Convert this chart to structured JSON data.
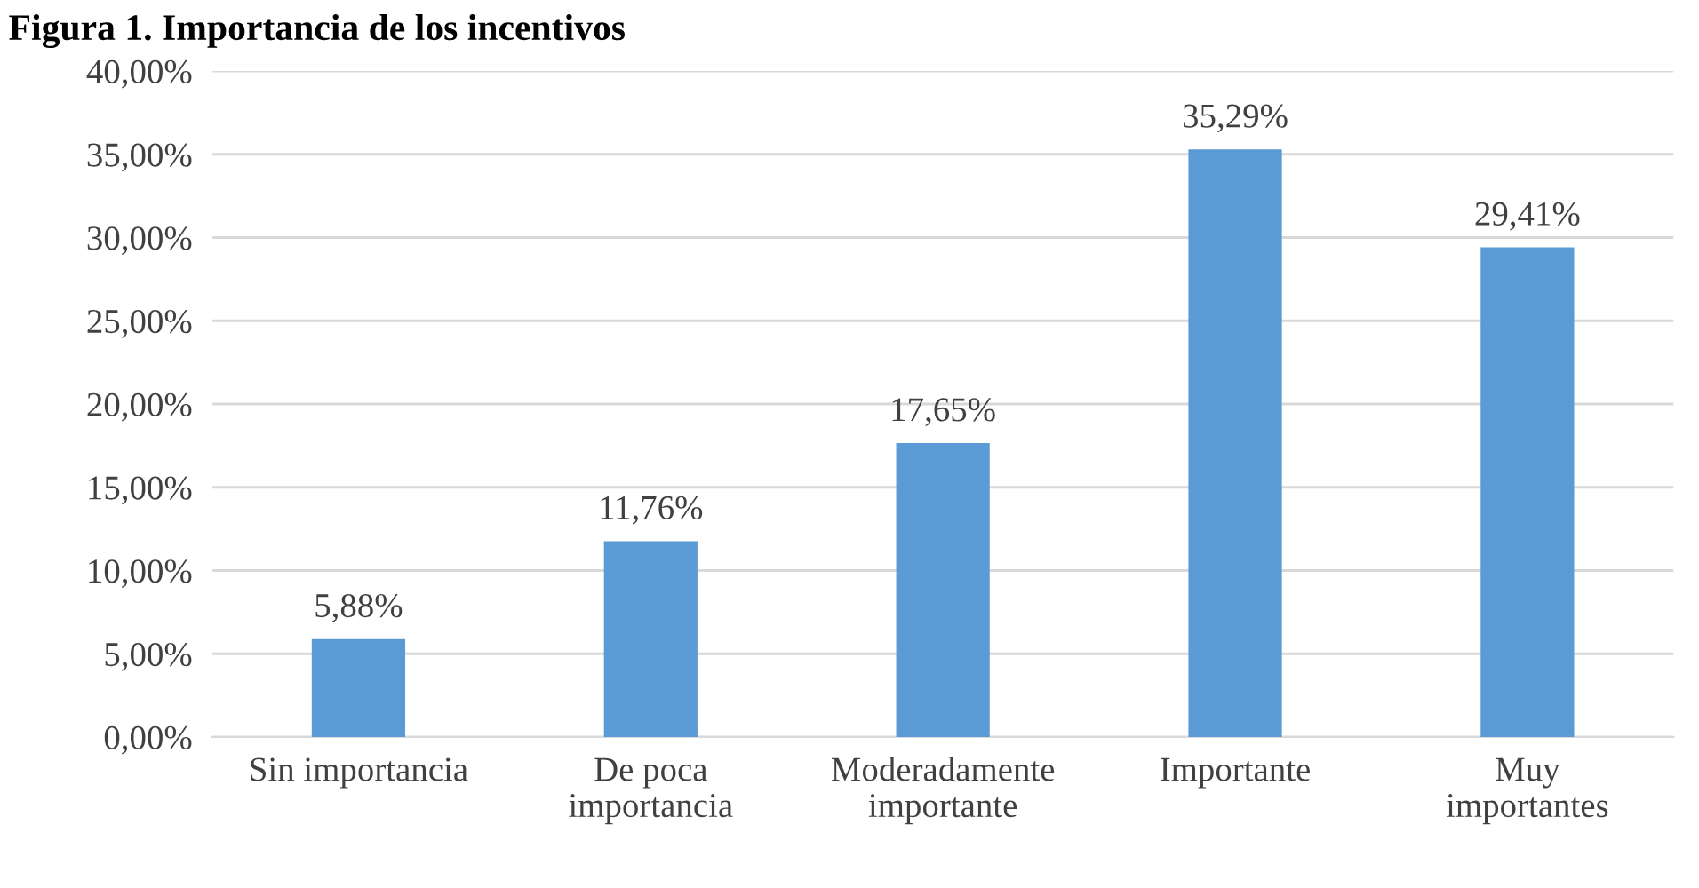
{
  "chart_data": {
    "type": "bar",
    "title": "Figura 1. Importancia de los incentivos",
    "categories": [
      "Sin importancia",
      "De poca\nimportancia",
      "Moderadamente\nimportante",
      "Importante",
      "Muy\nimportantes"
    ],
    "values": [
      5.88,
      11.76,
      17.65,
      35.29,
      29.41
    ],
    "value_labels": [
      "5,88%",
      "11,76%",
      "17,65%",
      "35,29%",
      "29,41%"
    ],
    "color": "#5b9bd5",
    "ylim": [
      0,
      40
    ],
    "yticks": [
      {
        "value": 0,
        "label": "0,00%"
      },
      {
        "value": 5,
        "label": "5,00%"
      },
      {
        "value": 10,
        "label": "10,00%"
      },
      {
        "value": 15,
        "label": "15,00%"
      },
      {
        "value": 20,
        "label": "20,00%"
      },
      {
        "value": 25,
        "label": "25,00%"
      },
      {
        "value": 30,
        "label": "30,00%"
      },
      {
        "value": 35,
        "label": "35,00%"
      },
      {
        "value": 40,
        "label": "40,00%"
      }
    ],
    "grid": "y"
  }
}
